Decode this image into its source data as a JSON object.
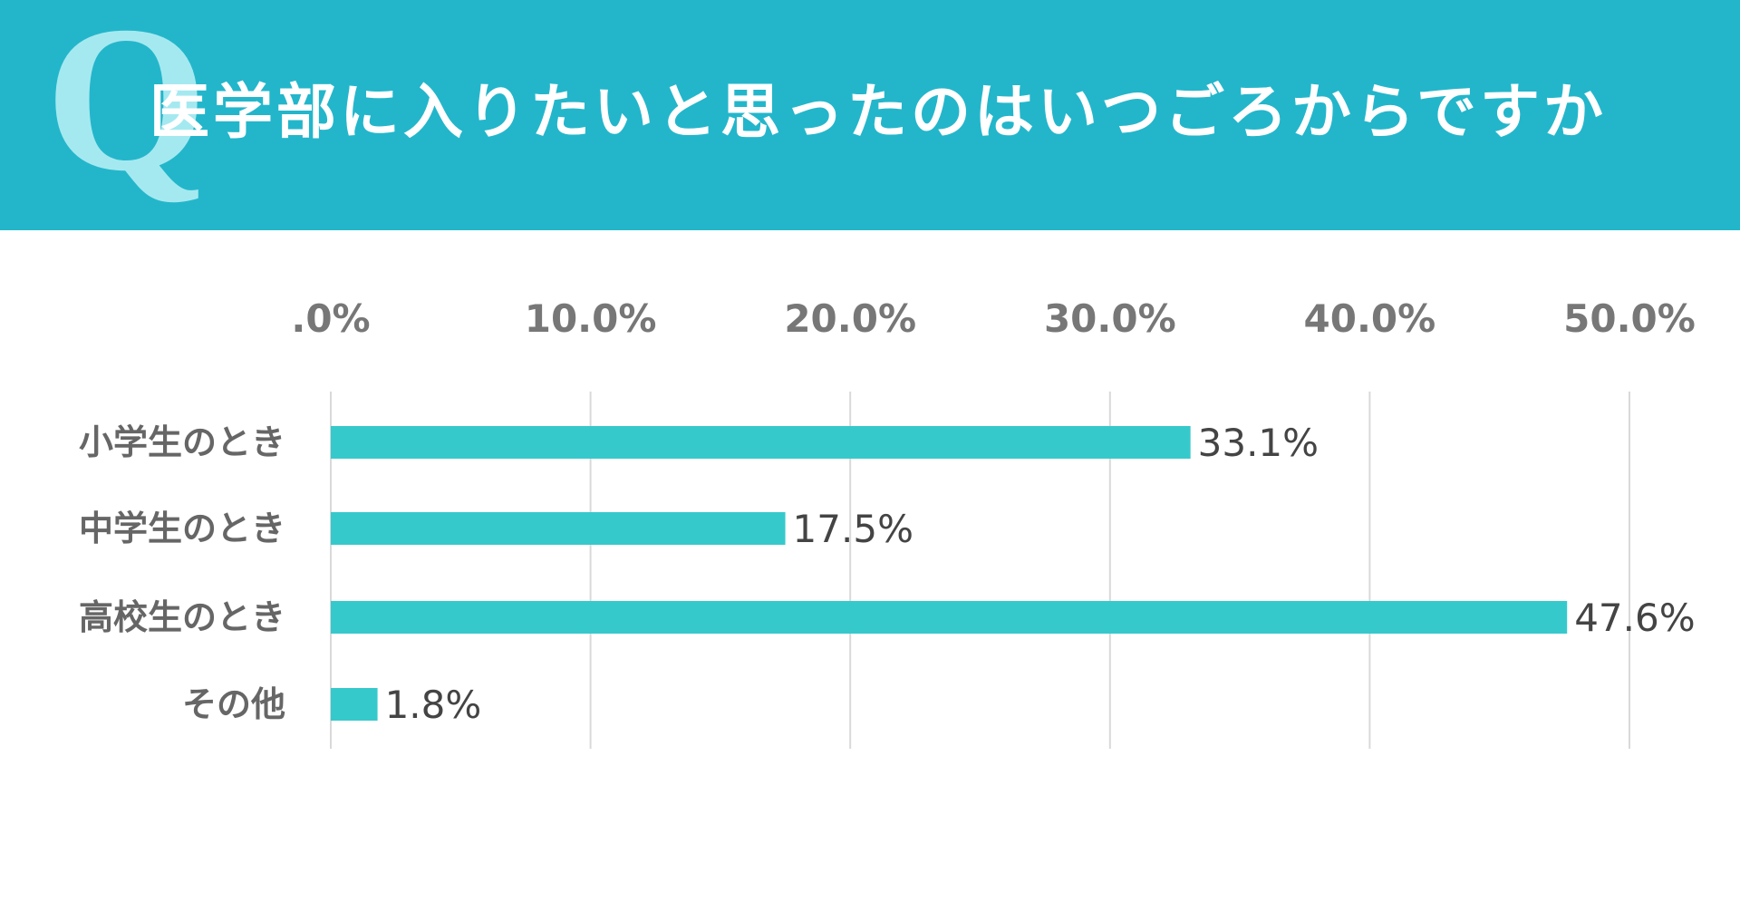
{
  "header": {
    "q_mark": "Q",
    "title": "医学部に入りたいと思ったのはいつごろからですか"
  },
  "colors": {
    "header_bg": "#23b6cb",
    "q_mark": "#a5e9f0",
    "bar": "#36c9cc",
    "grid": "#d9d9d9"
  },
  "chart_data": {
    "type": "bar",
    "orientation": "horizontal",
    "categories": [
      "小学生のとき",
      "中学生のとき",
      "高校生のとき",
      "その他"
    ],
    "values": [
      33.1,
      17.5,
      47.6,
      1.8
    ],
    "value_labels": [
      "33.1%",
      "17.5%",
      "47.6%",
      "1.8%"
    ],
    "xlim": [
      0,
      50
    ],
    "ticks": [
      0,
      10,
      20,
      30,
      40,
      50
    ],
    "tick_labels": [
      ".0%",
      "10.0%",
      "20.0%",
      "30.0%",
      "40.0%",
      "50.0%"
    ],
    "grid": true,
    "legend": false
  }
}
